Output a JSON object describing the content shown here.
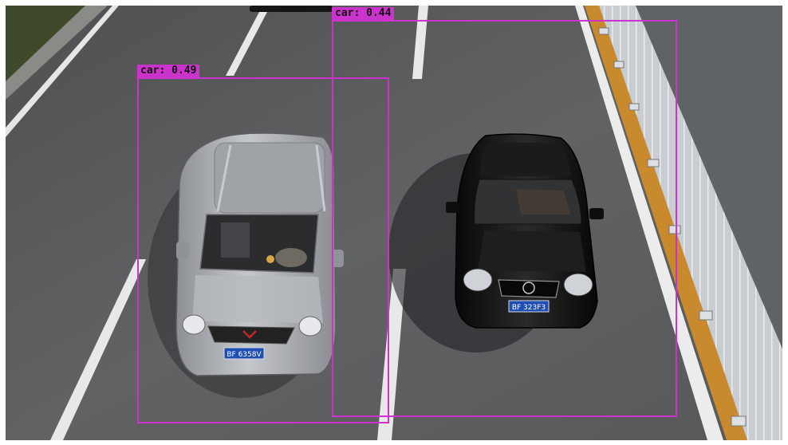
{
  "detections": [
    {
      "label": "car: 0.49",
      "class": "car",
      "score": 0.49
    },
    {
      "label": "car: 0.44",
      "class": "car",
      "score": 0.44
    }
  ],
  "plates": {
    "silver_van": "BF 6358V",
    "black_sedan": "BF 323F3"
  },
  "colors": {
    "bbox": "#cc33cc",
    "road": "#5b5d5f",
    "silver_car": "#a9acb0",
    "black_car": "#141414",
    "plate": "#1f4fb5"
  }
}
